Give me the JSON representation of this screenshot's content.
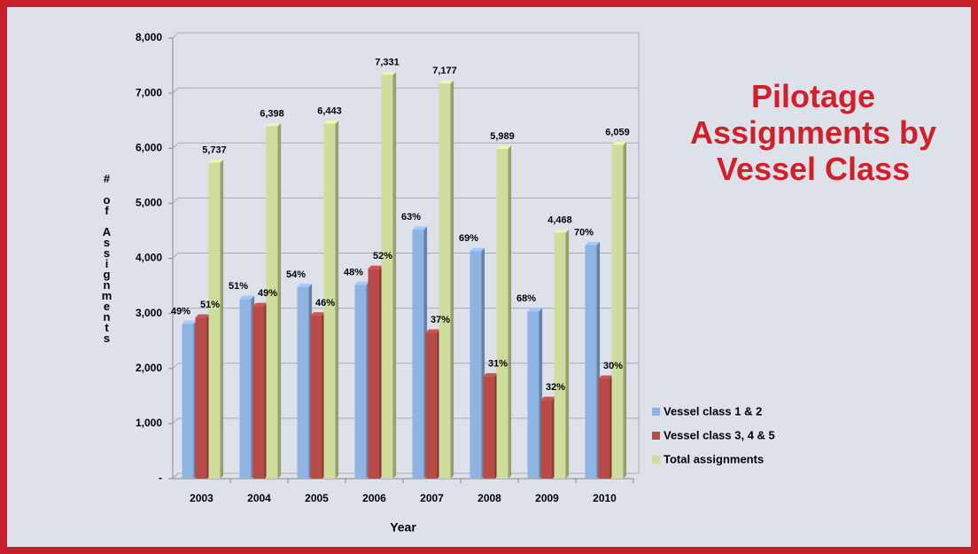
{
  "chart_data": {
    "type": "bar",
    "title": "Pilotage Assignments by Vessel Class",
    "x_label": "Year",
    "y_label": "# of Assignments",
    "categories": [
      "2003",
      "2004",
      "2005",
      "2006",
      "2007",
      "2008",
      "2009",
      "2010"
    ],
    "series": [
      {
        "name": "Vessel class 1 & 2",
        "color": "#8fb4e3",
        "values": [
          2811,
          3263,
          3479,
          3519,
          4522,
          4132,
          3038,
          4241
        ],
        "value_labels": [
          "49%",
          "51%",
          "54%",
          "48%",
          "63%",
          "69%",
          "68%",
          "70%"
        ]
      },
      {
        "name": "Vessel class 3, 4 & 5",
        "color": "#b84a48",
        "values": [
          2926,
          3135,
          2964,
          3812,
          2655,
          1857,
          1430,
          1818
        ],
        "value_labels": [
          "51%",
          "49%",
          "46%",
          "52%",
          "37%",
          "31%",
          "32%",
          "30%"
        ]
      },
      {
        "name": "Total assignments",
        "color": "#cfdd9c",
        "values": [
          5737,
          6398,
          6443,
          7331,
          7177,
          5989,
          4468,
          6059
        ],
        "value_labels": [
          "5,737",
          "6,398",
          "6,443",
          "7,331",
          "7,177",
          "5,989",
          "4,468",
          "6,059"
        ]
      }
    ],
    "ylim": [
      0,
      8000
    ],
    "yticks": [
      {
        "value": 0,
        "label": "-"
      },
      {
        "value": 1000,
        "label": "1,000"
      },
      {
        "value": 2000,
        "label": "2,000"
      },
      {
        "value": 3000,
        "label": "3,000"
      },
      {
        "value": 4000,
        "label": "4,000"
      },
      {
        "value": 5000,
        "label": "5,000"
      },
      {
        "value": 6000,
        "label": "6,000"
      },
      {
        "value": 7000,
        "label": "7,000"
      },
      {
        "value": 8000,
        "label": "8,000"
      }
    ],
    "grid": true,
    "legend": "right"
  }
}
